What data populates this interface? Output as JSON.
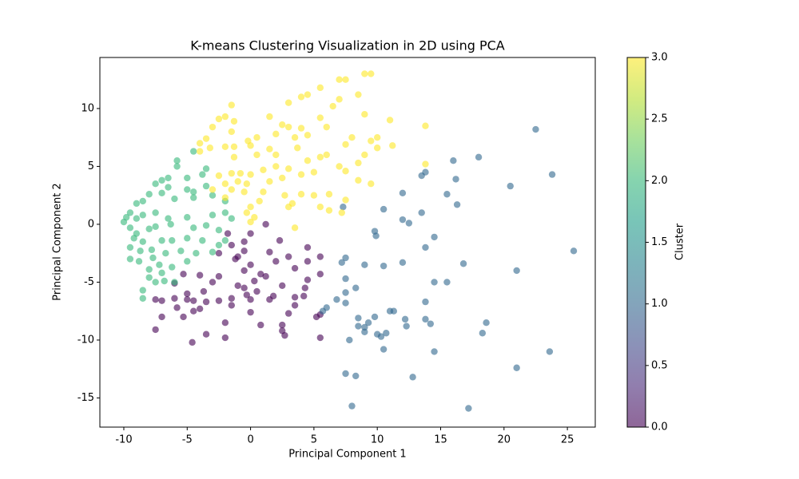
{
  "chart_data": {
    "type": "scatter",
    "title": "K-means Clustering Visualization in 2D using PCA",
    "x_label": "Principal Component 1",
    "y_label": "Principal Component 2",
    "xlim": [
      -11.89,
      27.2
    ],
    "ylim": [
      -17.52,
      14.41
    ],
    "xticks": [
      -10,
      -5,
      0,
      5,
      10,
      15,
      20,
      25
    ],
    "yticks": [
      -15,
      -10,
      -5,
      0,
      5,
      10
    ],
    "alpha": 0.6,
    "colorbar": {
      "label": "Cluster",
      "lim": [
        0,
        3
      ],
      "ticks": [
        {
          "value": 0,
          "label": "0.0"
        },
        0.5,
        {
          "value": 1,
          "label": "1.0"
        },
        1.5,
        {
          "value": 2,
          "label": "2.0"
        },
        2.5,
        {
          "value": 3,
          "label": "3.0"
        }
      ],
      "colormap": [
        "#440154",
        "#482878",
        "#3e4989",
        "#31688e",
        "#26828e",
        "#1f9e89",
        "#35b779",
        "#6ece58",
        "#b5de2b",
        "#fde725"
      ]
    },
    "series": [
      {
        "cluster": 0,
        "color": "#440154",
        "x": [
          1.2,
          -1.8,
          0,
          -0.5,
          2.3,
          4.5,
          -1.5,
          -2.5,
          -0.5,
          1.5,
          -1,
          -1.2,
          3,
          5.5,
          2,
          0,
          4.5,
          3.5,
          -5.3,
          -4,
          -2.5,
          -0.5,
          0.8,
          1.2,
          5.5,
          4.5,
          0.3,
          -3,
          -1,
          -0.5,
          2.5,
          4.3,
          -6,
          -5,
          -3.7,
          0.5,
          -0.3,
          0,
          1.8,
          3.5,
          4.2,
          -7.5,
          -7,
          -6,
          -5,
          -4.5,
          -3.5,
          -2.5,
          -1.5,
          -1.5,
          1.5,
          3.5,
          3,
          -5.8,
          -4,
          -4.5,
          5.5,
          5.2,
          -7,
          -5.3,
          -2,
          0.8,
          2.5,
          2.5,
          -7.5,
          -3.5,
          -2,
          2.7,
          5.5,
          -4.6,
          0
        ],
        "values": [
          0,
          -0.8,
          -0.8,
          -1.5,
          -1.4,
          -2,
          -1.8,
          -2.5,
          -2.3,
          -2.4,
          -2.8,
          -3,
          -2.8,
          -2.8,
          -3.2,
          -3.5,
          -3.2,
          -3.8,
          -4.3,
          -4.4,
          -4.5,
          -4,
          -4.3,
          -4.5,
          -4.3,
          -4.8,
          -4.9,
          -5,
          -5.3,
          -5.5,
          -5.3,
          -5.5,
          -5.1,
          -6,
          -5.8,
          -5.8,
          -6.1,
          -6.5,
          -6.2,
          -6.3,
          -6.2,
          -6.5,
          -6.6,
          -6.4,
          -6.5,
          -6.6,
          -6.7,
          -6.6,
          -6.4,
          -7,
          -6.5,
          -7,
          -7.7,
          -7.2,
          -7.3,
          -7.5,
          -7.8,
          -8,
          -8,
          -8,
          -8.5,
          -8.7,
          -8.7,
          -9.2,
          -9.1,
          -9.5,
          -9.8,
          -9.6,
          -9.8,
          -10.2,
          -7.6
        ]
      },
      {
        "cluster": 1,
        "color": "#31688e",
        "x": [
          22.5,
          18,
          16,
          23.8,
          13.5,
          13.8,
          16.2,
          20.5,
          12,
          15.5,
          7.3,
          10.5,
          16.3,
          13.5,
          12,
          12.5,
          9.8,
          9.9,
          14.5,
          25.5,
          13.8,
          12,
          7.5,
          7.2,
          9,
          10.5,
          16.8,
          21,
          7.5,
          8.3,
          14.5,
          15.5,
          7.5,
          6,
          6.8,
          7.5,
          13.8,
          11,
          11.3,
          8.5,
          9.3,
          9.8,
          12.2,
          13.8,
          14.2,
          18.6,
          8.5,
          9,
          12.3,
          10,
          10.3,
          10.7,
          18.3,
          7.8,
          9,
          10.5,
          14.5,
          23.6,
          21,
          7.5,
          8.3,
          12.8,
          8,
          17.2,
          5.7
        ],
        "values": [
          8.2,
          5.8,
          5.5,
          4.3,
          4.2,
          4.5,
          3.9,
          3.3,
          2.7,
          2.6,
          1.5,
          1.3,
          1.7,
          1,
          0.4,
          0.1,
          -0.6,
          -1,
          -1.1,
          -2.3,
          -2,
          -3.3,
          -2.9,
          -3.3,
          -3.5,
          -3.6,
          -3.4,
          -4,
          -4.7,
          -5.5,
          -5,
          -5,
          -5.9,
          -7.2,
          -6.5,
          -6.8,
          -6.7,
          -7.5,
          -7.5,
          -8.1,
          -8.5,
          -8,
          -8.2,
          -8.2,
          -8.6,
          -8.5,
          -8.8,
          -8.9,
          -8.8,
          -9.5,
          -9.7,
          -9.4,
          -9.4,
          -10,
          -9.3,
          -10.8,
          -11,
          -11,
          -12.4,
          -12.9,
          -13.1,
          -13.2,
          -15.7,
          -15.9,
          -7.5
        ]
      },
      {
        "cluster": 2,
        "color": "#35b779",
        "x": [
          -4.5,
          -5.8,
          -5.8,
          -3.5,
          -3.8,
          -5,
          -6.5,
          -7,
          -7.5,
          -6.5,
          -3.5,
          -5,
          -4.5,
          -8,
          -7,
          -9,
          -8.5,
          -6,
          -4.5,
          -3,
          -2,
          -9.5,
          -10,
          -9.8,
          -9,
          -8.5,
          -7.5,
          -6.5,
          -5,
          -3,
          -2,
          -1.5,
          -9.5,
          -9,
          -8,
          -7.5,
          -6.3,
          -4.5,
          -3.5,
          -2.5,
          -9.2,
          -8.5,
          -7,
          -6.2,
          -5,
          -3.8,
          -2,
          -9.5,
          -8.7,
          -7.8,
          -6.7,
          -5.5,
          -4.3,
          -3,
          -9.5,
          -8.8,
          -7.7,
          -7.2,
          -6.2,
          -5,
          -8,
          -7,
          -6.8,
          -8,
          -7.5,
          -6,
          -8.5,
          -8.5,
          -2.5
        ],
        "values": [
          6.3,
          5.5,
          5,
          4.8,
          4.3,
          4,
          4,
          3.8,
          3.5,
          3.2,
          3.3,
          3,
          2.8,
          2.6,
          2.7,
          1.8,
          2,
          2.2,
          2.3,
          2.5,
          2,
          1,
          0.2,
          0.6,
          0.5,
          0.8,
          1,
          0.5,
          0.6,
          0.8,
          1,
          0.5,
          -0.3,
          -0.8,
          -0.4,
          -0.2,
          0,
          -0.3,
          -0.1,
          -0.5,
          -1.2,
          -1.5,
          -1.4,
          -1.4,
          -1.2,
          -1.4,
          -1.4,
          -2,
          -2.3,
          -2.2,
          -2.5,
          -2.3,
          -2.5,
          -2.4,
          -3,
          -3.2,
          -2.9,
          -3.5,
          -3.7,
          -3.2,
          -3.9,
          -4.2,
          -4.9,
          -4.6,
          -5,
          -5,
          -5.7,
          -6.4,
          -1.8
        ]
      },
      {
        "cluster": 3,
        "color": "#fde725",
        "x": [
          9.5,
          9,
          7,
          7.5,
          5.5,
          4.5,
          4,
          8.5,
          7,
          6.5,
          3,
          -1.5,
          9,
          11,
          5.5,
          1.5,
          -2,
          -2.5,
          -1.3,
          2.5,
          3,
          13.8,
          4,
          6,
          -3,
          -1.5,
          10,
          9.5,
          8,
          4.5,
          3.5,
          2,
          0.5,
          -0.2,
          -3.5,
          -4,
          11.2,
          7.5,
          10,
          3.7,
          -2,
          -1.3,
          -3.2,
          1.5,
          0,
          -4,
          9,
          6,
          5.5,
          4.5,
          2,
          0.5,
          -1.3,
          13.8,
          8.5,
          7,
          3,
          2,
          1,
          0,
          -0.8,
          -1.5,
          -2.5,
          5,
          7.5,
          8.5,
          4,
          2.5,
          1.5,
          -0.3,
          -1,
          -2,
          9.5,
          1,
          -0.5,
          -1.5,
          -3,
          4,
          5,
          6.2,
          7.5,
          2.7,
          -2,
          0.7,
          3.3,
          3,
          5.5,
          0,
          -0.3,
          6.2,
          7.2,
          3.5,
          0.3,
          0
        ],
        "values": [
          13,
          13,
          12.5,
          12.5,
          11.8,
          11.2,
          11,
          11.2,
          10.8,
          10.2,
          10.5,
          10.3,
          9.5,
          9,
          9.2,
          9.3,
          9.3,
          9.1,
          8.9,
          8.6,
          8.4,
          8.5,
          8.3,
          8.4,
          8.4,
          8,
          7.5,
          7.2,
          7.5,
          7.7,
          7.5,
          7.8,
          7.5,
          7.2,
          7.4,
          7,
          6.8,
          6.9,
          6.6,
          6.6,
          6.7,
          6.7,
          6.6,
          6.5,
          6.8,
          6.3,
          6,
          6,
          5.8,
          5.5,
          6,
          6,
          5.8,
          5.2,
          5.3,
          5,
          4.8,
          5,
          4.7,
          4.3,
          4.4,
          4.4,
          4.2,
          4.5,
          4.6,
          3.8,
          4.3,
          4,
          3.7,
          3.5,
          3.7,
          3.5,
          3.5,
          2.8,
          2.8,
          3,
          3,
          2.6,
          2.5,
          2.6,
          2.1,
          2.5,
          2.3,
          2,
          1.8,
          1.5,
          1.5,
          1.5,
          1,
          1.2,
          1,
          -0.3,
          0.6,
          0.2
        ]
      }
    ]
  }
}
